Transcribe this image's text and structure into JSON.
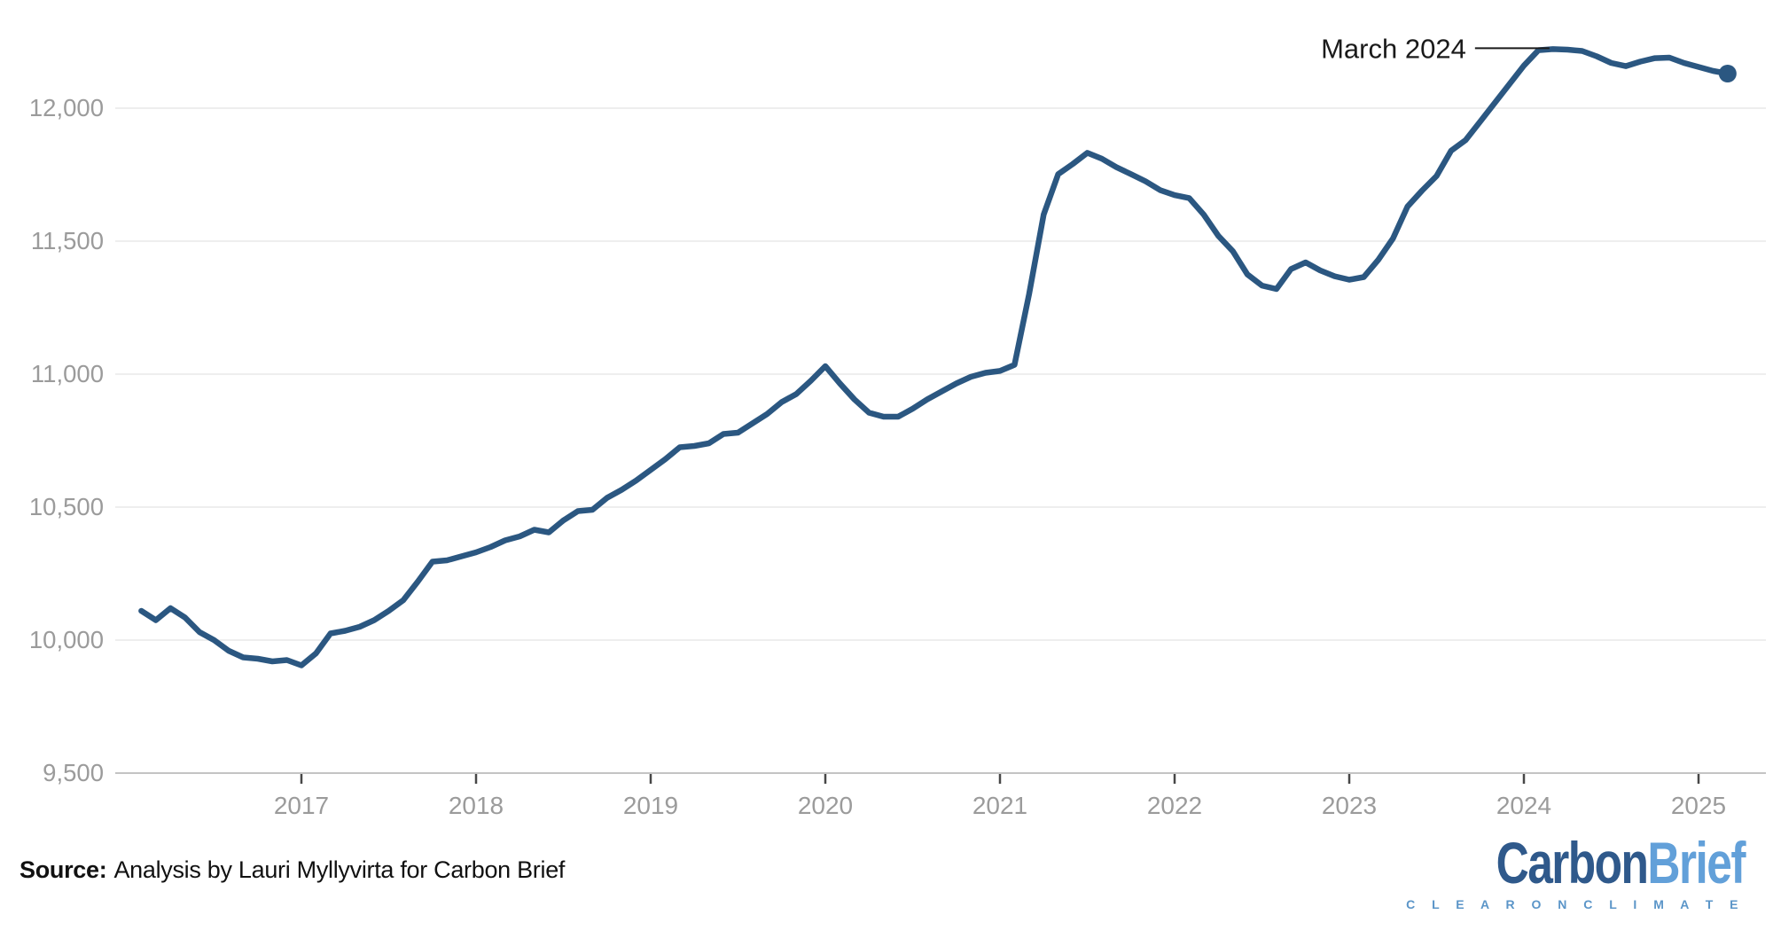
{
  "chart_data": {
    "type": "line",
    "title": "",
    "xlabel": "",
    "ylabel": "",
    "legend": "none",
    "grid": "horizontal",
    "ylim": [
      9500,
      12250
    ],
    "yticks": [
      9500,
      10000,
      10500,
      11000,
      11500,
      12000
    ],
    "ytick_labels": [
      "9,500",
      "10,000",
      "10,500",
      "11,000",
      "11,500",
      "12,000"
    ],
    "xtick_labels": [
      "2017",
      "2018",
      "2019",
      "2020",
      "2021",
      "2022",
      "2023",
      "2024",
      "2025"
    ],
    "frequency": "monthly",
    "months": [
      "2016-02",
      "2016-03",
      "2016-04",
      "2016-05",
      "2016-06",
      "2016-07",
      "2016-08",
      "2016-09",
      "2016-10",
      "2016-11",
      "2016-12",
      "2017-01",
      "2017-02",
      "2017-03",
      "2017-04",
      "2017-05",
      "2017-06",
      "2017-07",
      "2017-08",
      "2017-09",
      "2017-10",
      "2017-11",
      "2017-12",
      "2018-01",
      "2018-02",
      "2018-03",
      "2018-04",
      "2018-05",
      "2018-06",
      "2018-07",
      "2018-08",
      "2018-09",
      "2018-10",
      "2018-11",
      "2018-12",
      "2019-01",
      "2019-02",
      "2019-03",
      "2019-04",
      "2019-05",
      "2019-06",
      "2019-07",
      "2019-08",
      "2019-09",
      "2019-10",
      "2019-11",
      "2019-12",
      "2020-01",
      "2020-02",
      "2020-03",
      "2020-04",
      "2020-05",
      "2020-06",
      "2020-07",
      "2020-08",
      "2020-09",
      "2020-10",
      "2020-11",
      "2020-12",
      "2021-01",
      "2021-02",
      "2021-03",
      "2021-04",
      "2021-05",
      "2021-06",
      "2021-07",
      "2021-08",
      "2021-09",
      "2021-10",
      "2021-11",
      "2021-12",
      "2022-01",
      "2022-02",
      "2022-03",
      "2022-04",
      "2022-05",
      "2022-06",
      "2022-07",
      "2022-08",
      "2022-09",
      "2022-10",
      "2022-11",
      "2022-12",
      "2023-01",
      "2023-02",
      "2023-03",
      "2023-04",
      "2023-05",
      "2023-06",
      "2023-07",
      "2023-08",
      "2023-09",
      "2023-10",
      "2023-11",
      "2023-12",
      "2024-01",
      "2024-02",
      "2024-03",
      "2024-04",
      "2024-05",
      "2024-06",
      "2024-07",
      "2024-08",
      "2024-09",
      "2024-10",
      "2024-11",
      "2024-12",
      "2025-01",
      "2025-02",
      "2025-03"
    ],
    "values": [
      10110,
      10075,
      10120,
      10085,
      10030,
      10000,
      9960,
      9935,
      9930,
      9920,
      9925,
      9905,
      9950,
      10025,
      10035,
      10050,
      10075,
      10110,
      10150,
      10220,
      10295,
      10300,
      10315,
      10330,
      10350,
      10375,
      10390,
      10415,
      10405,
      10450,
      10485,
      10490,
      10535,
      10565,
      10600,
      10640,
      10680,
      10725,
      10730,
      10740,
      10775,
      10780,
      10815,
      10850,
      10895,
      10925,
      10975,
      11030,
      10965,
      10905,
      10855,
      10840,
      10840,
      10870,
      10905,
      10935,
      10965,
      10990,
      11005,
      11012,
      11035,
      11300,
      11600,
      11752,
      11790,
      11832,
      11810,
      11778,
      11752,
      11725,
      11692,
      11673,
      11662,
      11600,
      11520,
      11462,
      11375,
      11333,
      11320,
      11395,
      11420,
      11390,
      11368,
      11355,
      11365,
      11430,
      11510,
      11630,
      11690,
      11745,
      11840,
      11880,
      11950,
      12020,
      12090,
      12160,
      12218,
      12222,
      12220,
      12215,
      12195,
      12170,
      12158,
      12175,
      12188,
      12190,
      12170,
      12155,
      12140,
      12130
    ],
    "annotation": {
      "label": "March 2024",
      "month": "2024-03"
    },
    "end_marker": "dot"
  },
  "colors": {
    "line": "#2b5781",
    "end_dot": "#2b5781",
    "grid": "#e8e8e8",
    "axis": "#c4c4c4",
    "tick": "#474747",
    "axis_label": "#9b9b9b",
    "annotation_text": "#1a1a1a",
    "annotation_line": "#1a1a1a",
    "background": "#ffffff"
  },
  "footer": {
    "source_label": "Source:",
    "source_text": "Analysis by Lauri Myllyvirta for Carbon Brief",
    "logo": {
      "carbon": "Carbon",
      "brief": "Brief",
      "tagline": "C L E A R   O N   C L I M A T E"
    }
  }
}
